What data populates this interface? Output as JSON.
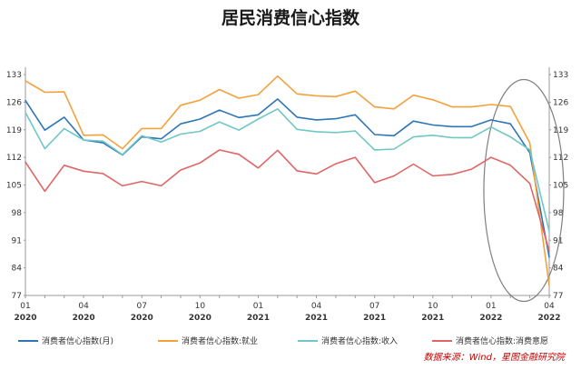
{
  "chart_data": {
    "type": "line",
    "title": "居民消费信心指数",
    "source": "数据来源：Wind，星图金融研究院",
    "ylim": [
      77,
      133
    ],
    "yticks": [
      77,
      84,
      91,
      98,
      105,
      112,
      119,
      126,
      133
    ],
    "x": [
      "2020-01",
      "2020-02",
      "2020-03",
      "2020-04",
      "2020-05",
      "2020-06",
      "2020-07",
      "2020-08",
      "2020-09",
      "2020-10",
      "2020-11",
      "2020-12",
      "2021-01",
      "2021-02",
      "2021-03",
      "2021-04",
      "2021-05",
      "2021-06",
      "2021-07",
      "2021-08",
      "2021-09",
      "2021-10",
      "2021-11",
      "2021-12",
      "2022-01",
      "2022-02",
      "2022-03",
      "2022-04"
    ],
    "xtick_labels": [
      {
        "index": 0,
        "month": "01",
        "year": "2020"
      },
      {
        "index": 3,
        "month": "04",
        "year": "2020"
      },
      {
        "index": 6,
        "month": "07",
        "year": "2020"
      },
      {
        "index": 9,
        "month": "10",
        "year": "2020"
      },
      {
        "index": 12,
        "month": "01",
        "year": "2021"
      },
      {
        "index": 15,
        "month": "04",
        "year": "2021"
      },
      {
        "index": 18,
        "month": "07",
        "year": "2021"
      },
      {
        "index": 21,
        "month": "10",
        "year": "2021"
      },
      {
        "index": 24,
        "month": "01",
        "year": "2022"
      },
      {
        "index": 27,
        "month": "04",
        "year": "2022"
      }
    ],
    "grid": false,
    "legend_position": "bottom",
    "series": [
      {
        "name": "消费者信心指数(月)",
        "color": "#2e75b6",
        "values": [
          126.4,
          118.9,
          122.2,
          116.4,
          115.7,
          112.6,
          117.2,
          116.7,
          120.5,
          121.7,
          124.0,
          122.1,
          122.8,
          126.8,
          122.2,
          121.5,
          121.8,
          122.8,
          117.8,
          117.5,
          121.2,
          120.2,
          119.8,
          119.8,
          121.5,
          120.5,
          113.2,
          86.7
        ]
      },
      {
        "name": "消费者信心指数:就业",
        "color": "#f4a13c",
        "values": [
          131.4,
          128.5,
          128.6,
          117.6,
          117.7,
          114.2,
          119.3,
          119.3,
          125.2,
          126.5,
          129.2,
          127.0,
          127.9,
          132.6,
          128.1,
          127.6,
          127.4,
          128.8,
          124.8,
          124.3,
          127.8,
          126.6,
          124.8,
          124.8,
          125.4,
          124.9,
          115.7,
          79.5
        ]
      },
      {
        "name": "消费者信心指数:收入",
        "color": "#70c7c5",
        "values": [
          123.4,
          114.2,
          119.3,
          116.4,
          116.1,
          112.7,
          117.5,
          115.9,
          117.9,
          118.6,
          121.0,
          118.9,
          121.7,
          124.3,
          119.1,
          118.5,
          118.3,
          118.7,
          113.9,
          114.1,
          117.2,
          117.6,
          117.0,
          117.0,
          119.7,
          117.2,
          113.9,
          93.3
        ]
      },
      {
        "name": "消费者信心指数:消费意愿",
        "color": "#e06666",
        "values": [
          110.8,
          103.4,
          110.0,
          108.5,
          107.9,
          104.8,
          105.9,
          104.8,
          108.8,
          110.6,
          113.9,
          112.8,
          109.3,
          113.8,
          108.6,
          107.8,
          110.4,
          112.0,
          105.6,
          107.3,
          110.3,
          107.3,
          107.7,
          109.0,
          112.0,
          110.0,
          105.4,
          88.3
        ]
      }
    ]
  }
}
